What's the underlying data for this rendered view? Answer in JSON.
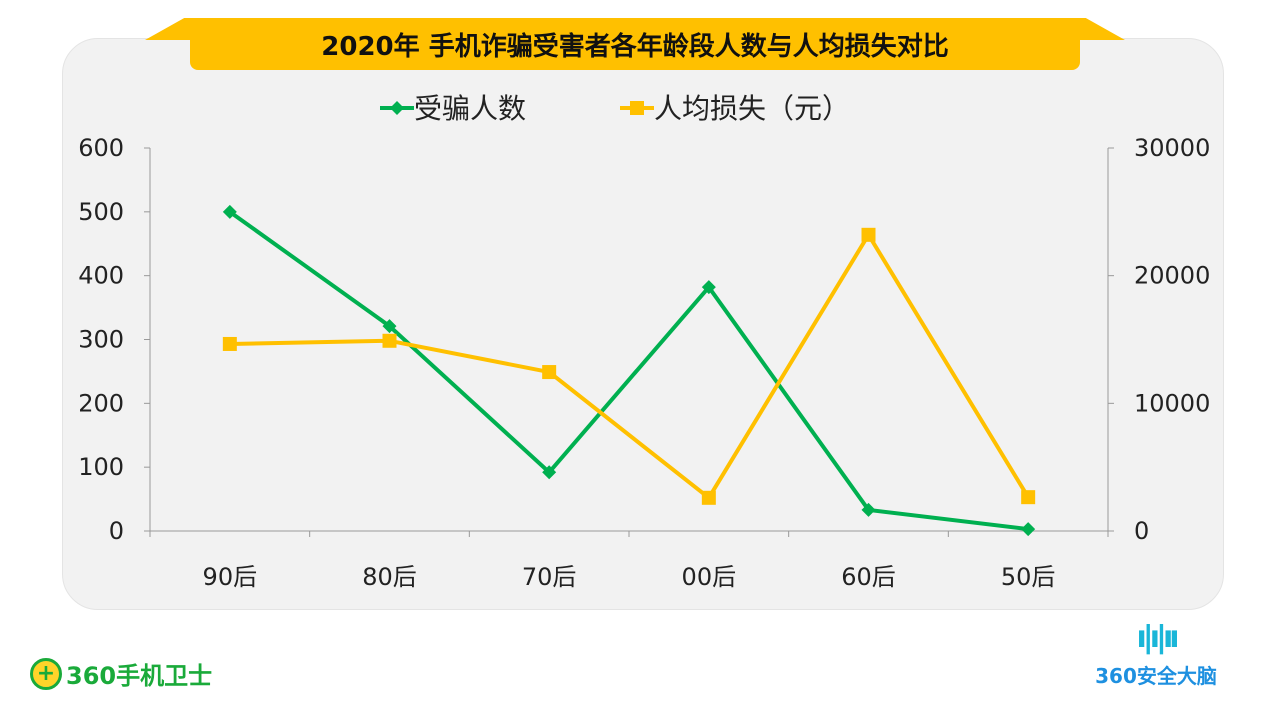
{
  "title": "2020年 手机诈骗受害者各年龄段人数与人均损失对比",
  "chart_data": {
    "type": "line",
    "title": "2020年 手机诈骗受害者各年龄段人数与人均损失对比",
    "categories": [
      "90后",
      "80后",
      "70后",
      "00后",
      "60后",
      "50后"
    ],
    "series": [
      {
        "name": "受骗人数",
        "axis": "left",
        "color": "#00b050",
        "marker": "diamond",
        "values": [
          500,
          321,
          92,
          382,
          33,
          3
        ]
      },
      {
        "name": "人均损失（元）",
        "axis": "right",
        "color": "#ffc000",
        "marker": "square",
        "values": [
          14650,
          14900,
          12450,
          2600,
          23200,
          2650
        ]
      }
    ],
    "y_left": {
      "range": [
        0,
        600
      ],
      "ticks": [
        0,
        100,
        200,
        300,
        400,
        500,
        600
      ]
    },
    "y_right": {
      "range": [
        0,
        30000
      ],
      "ticks": [
        0,
        10000,
        20000,
        30000
      ]
    },
    "legend": "top",
    "grid": false
  },
  "logos": {
    "left": "360手机卫士",
    "right": "360安全大脑"
  }
}
